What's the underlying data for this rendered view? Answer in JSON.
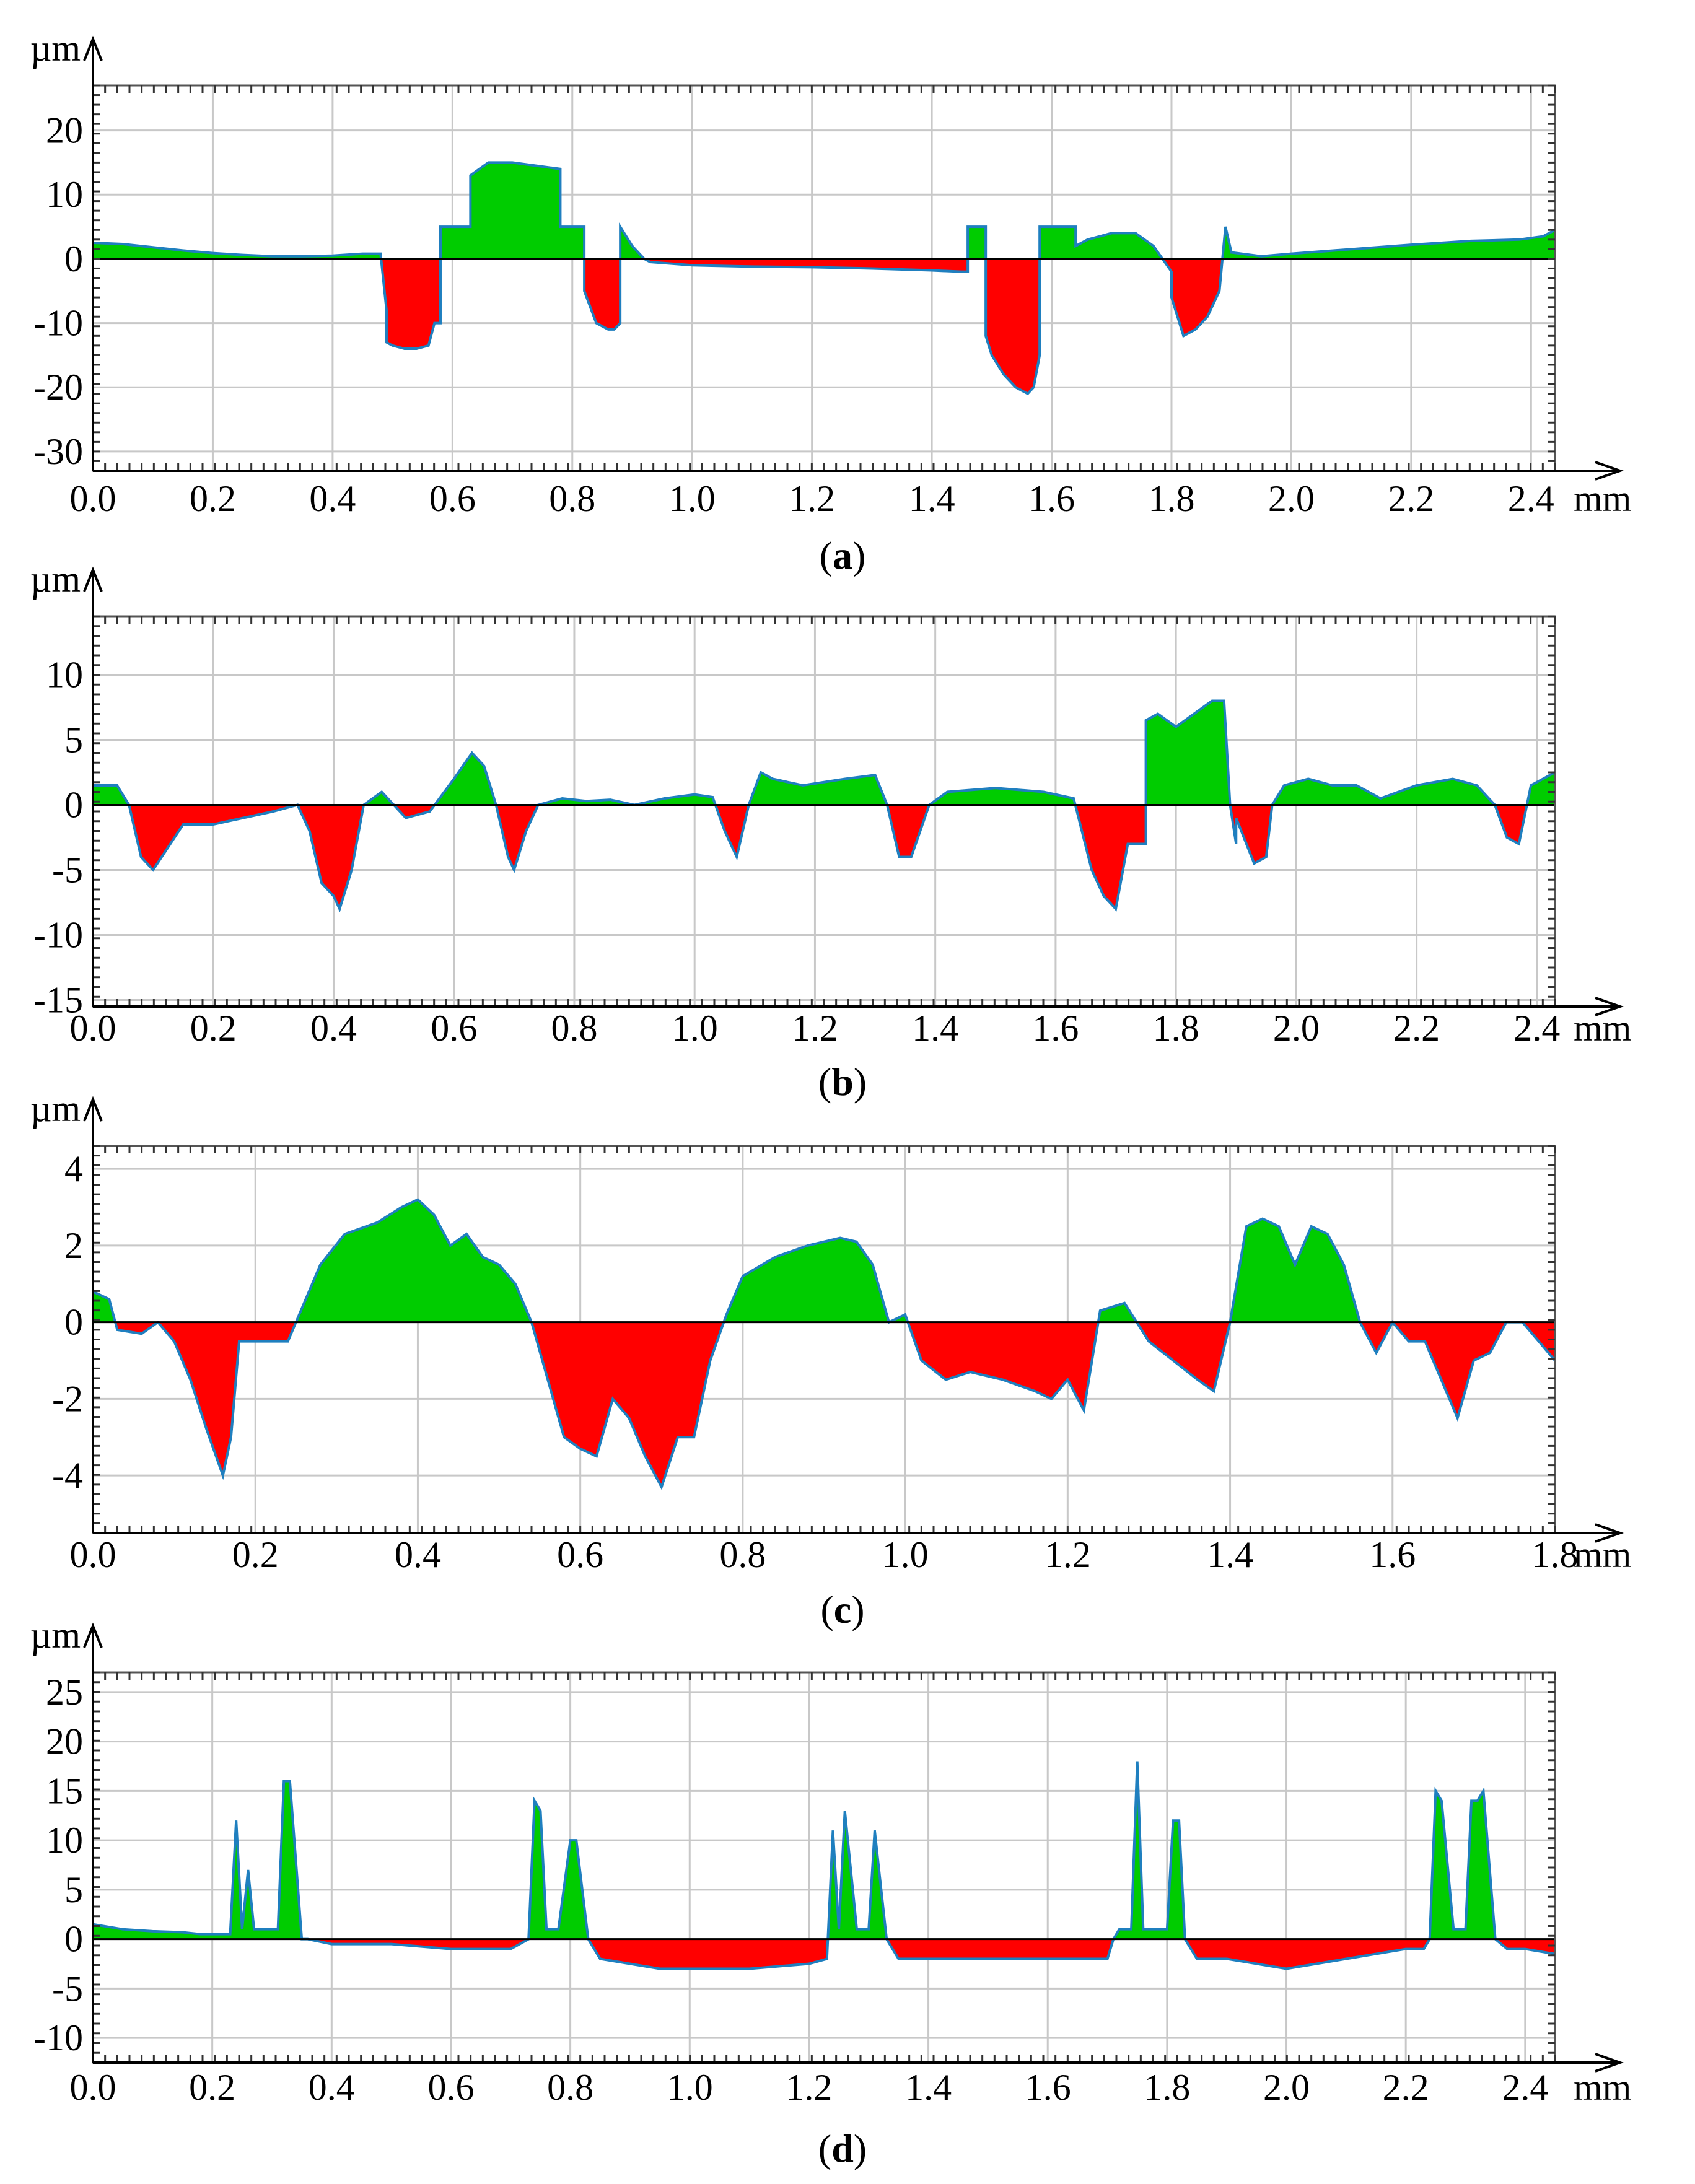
{
  "colors": {
    "positive_fill": "#00cc00",
    "negative_fill": "#ff0000",
    "profile_line": "#1f7fbf",
    "grid": "#c8c8c8",
    "axis": "#000000"
  },
  "chart_data": [
    {
      "type": "area",
      "panel": "(a)",
      "panel_letter": "a",
      "y_unit": "µm",
      "x_unit": "mm",
      "xlim": [
        0,
        2.44
      ],
      "ylim": [
        -33,
        27
      ],
      "x_ticks": [
        "0.0",
        "0.2",
        "0.4",
        "0.6",
        "0.8",
        "1.0",
        "1.2",
        "1.4",
        "1.6",
        "1.8",
        "2.0",
        "2.2",
        "2.4"
      ],
      "y_ticks": [
        "20",
        "10",
        "0",
        "-10",
        "-20",
        "-30"
      ],
      "grid": true,
      "series": [
        {
          "x": [
            0.0,
            0.05,
            0.1,
            0.15,
            0.2,
            0.25,
            0.3,
            0.35,
            0.4,
            0.45,
            0.48,
            0.49,
            0.49,
            0.5,
            0.52,
            0.54,
            0.56,
            0.57,
            0.58,
            0.58,
            0.63,
            0.63,
            0.66,
            0.7,
            0.74,
            0.78,
            0.78,
            0.82,
            0.82,
            0.84,
            0.86,
            0.87,
            0.88,
            0.88,
            0.9,
            0.92,
            0.93,
            1.0,
            1.1,
            1.2,
            1.3,
            1.4,
            1.45,
            1.46,
            1.46,
            1.49,
            1.49,
            1.5,
            1.52,
            1.54,
            1.56,
            1.57,
            1.58,
            1.58,
            1.64,
            1.64,
            1.66,
            1.7,
            1.74,
            1.77,
            1.8,
            1.8,
            1.82,
            1.84,
            1.86,
            1.88,
            1.89,
            1.9,
            1.95,
            2.0,
            2.1,
            2.2,
            2.3,
            2.38,
            2.42,
            2.44
          ],
          "y": [
            2.5,
            2.3,
            1.8,
            1.3,
            0.9,
            0.6,
            0.4,
            0.4,
            0.5,
            0.8,
            0.8,
            -8,
            -13,
            -13.5,
            -14,
            -14,
            -13.5,
            -10,
            -10,
            5,
            5,
            13,
            15,
            15,
            14.5,
            14,
            5,
            5,
            -5,
            -10,
            -11,
            -11,
            -10,
            5,
            2,
            0,
            -0.5,
            -1,
            -1.2,
            -1.3,
            -1.5,
            -1.8,
            -2,
            -2,
            5,
            5,
            -12,
            -15,
            -18,
            -20,
            -21,
            -20,
            -15,
            5,
            5,
            2,
            3,
            4,
            4,
            2,
            -2,
            -6,
            -12,
            -11,
            -9,
            -5,
            5,
            1,
            0.4,
            0.8,
            1.5,
            2.2,
            2.8,
            3,
            3.5,
            4.5
          ]
        }
      ]
    },
    {
      "type": "area",
      "panel": "(b)",
      "panel_letter": "b",
      "y_unit": "µm",
      "x_unit": "mm",
      "xlim": [
        0,
        2.43
      ],
      "ylim": [
        -15.5,
        14.5
      ],
      "x_ticks": [
        "0.0",
        "0.2",
        "0.4",
        "0.6",
        "0.8",
        "1.0",
        "1.2",
        "1.4",
        "1.6",
        "1.8",
        "2.0",
        "2.2",
        "2.4"
      ],
      "y_ticks": [
        "10",
        "5",
        "0",
        "-5",
        "-10",
        "-15"
      ],
      "grid": true,
      "series": [
        {
          "x": [
            0.0,
            0.04,
            0.06,
            0.08,
            0.1,
            0.15,
            0.2,
            0.25,
            0.3,
            0.34,
            0.36,
            0.38,
            0.4,
            0.41,
            0.43,
            0.45,
            0.48,
            0.52,
            0.56,
            0.6,
            0.63,
            0.65,
            0.67,
            0.69,
            0.7,
            0.72,
            0.74,
            0.78,
            0.82,
            0.86,
            0.9,
            0.95,
            1.0,
            1.03,
            1.05,
            1.07,
            1.09,
            1.11,
            1.13,
            1.18,
            1.25,
            1.3,
            1.32,
            1.34,
            1.36,
            1.39,
            1.42,
            1.5,
            1.58,
            1.63,
            1.66,
            1.68,
            1.7,
            1.72,
            1.75,
            1.75,
            1.77,
            1.8,
            1.83,
            1.86,
            1.88,
            1.89,
            1.9,
            1.9,
            1.93,
            1.95,
            1.96,
            1.98,
            2.02,
            2.06,
            2.1,
            2.14,
            2.2,
            2.26,
            2.3,
            2.33,
            2.35,
            2.37,
            2.39,
            2.43
          ],
          "y": [
            1.5,
            1.5,
            0,
            -4,
            -5,
            -1.5,
            -1.5,
            -1,
            -0.5,
            0,
            -2,
            -6,
            -7,
            -8,
            -5,
            0,
            1,
            -1,
            -0.5,
            2,
            4,
            3,
            0,
            -4,
            -5,
            -2,
            0,
            0.5,
            0.3,
            0.4,
            0,
            0.5,
            0.8,
            0.6,
            -2,
            -4,
            0,
            2.5,
            2,
            1.5,
            2,
            2.3,
            0,
            -4,
            -4,
            0,
            1,
            1.3,
            1,
            0.5,
            -5,
            -7,
            -8,
            -3,
            -3,
            6.5,
            7,
            6,
            7,
            8,
            8,
            0,
            -3,
            -1,
            -4.5,
            -4,
            0,
            1.5,
            2,
            1.5,
            1.5,
            0.5,
            1.5,
            2,
            1.5,
            0,
            -2.5,
            -3,
            1.5,
            2.5
          ]
        }
      ]
    },
    {
      "type": "area",
      "panel": "(c)",
      "panel_letter": "c",
      "y_unit": "µm",
      "x_unit": "mm",
      "xlim": [
        0,
        1.8
      ],
      "ylim": [
        -5.5,
        4.6
      ],
      "x_ticks": [
        "0.0",
        "0.2",
        "0.4",
        "0.6",
        "0.8",
        "1.0",
        "1.2",
        "1.4",
        "1.6",
        "1.8"
      ],
      "y_ticks": [
        "4",
        "2",
        "0",
        "-2",
        "-4"
      ],
      "grid": true,
      "series": [
        {
          "x": [
            0.0,
            0.02,
            0.03,
            0.06,
            0.08,
            0.1,
            0.12,
            0.14,
            0.16,
            0.17,
            0.18,
            0.19,
            0.21,
            0.24,
            0.25,
            0.28,
            0.31,
            0.35,
            0.38,
            0.4,
            0.42,
            0.44,
            0.46,
            0.48,
            0.5,
            0.52,
            0.54,
            0.56,
            0.58,
            0.6,
            0.62,
            0.64,
            0.66,
            0.68,
            0.7,
            0.72,
            0.74,
            0.76,
            0.78,
            0.8,
            0.84,
            0.88,
            0.92,
            0.94,
            0.96,
            0.98,
            1.0,
            1.02,
            1.05,
            1.08,
            1.12,
            1.16,
            1.18,
            1.2,
            1.22,
            1.24,
            1.27,
            1.3,
            1.33,
            1.36,
            1.38,
            1.4,
            1.42,
            1.44,
            1.46,
            1.48,
            1.5,
            1.52,
            1.54,
            1.56,
            1.58,
            1.6,
            1.62,
            1.64,
            1.66,
            1.68,
            1.7,
            1.72,
            1.74,
            1.76,
            1.78,
            1.8
          ],
          "y": [
            0.8,
            0.6,
            -0.2,
            -0.3,
            0,
            -0.5,
            -1.5,
            -2.8,
            -4,
            -3,
            -0.5,
            -0.5,
            -0.5,
            -0.5,
            0,
            1.5,
            2.3,
            2.6,
            3,
            3.2,
            2.8,
            2,
            2.3,
            1.7,
            1.5,
            1,
            0,
            -1.5,
            -3,
            -3.3,
            -3.5,
            -2,
            -2.5,
            -3.5,
            -4.3,
            -3,
            -3,
            -1,
            0.2,
            1.2,
            1.7,
            2,
            2.2,
            2.1,
            1.5,
            0,
            0.2,
            -1,
            -1.5,
            -1.3,
            -1.5,
            -1.8,
            -2,
            -1.5,
            -2.3,
            0.3,
            0.5,
            -0.5,
            -1,
            -1.5,
            -1.8,
            0,
            2.5,
            2.7,
            2.5,
            1.5,
            2.5,
            2.3,
            1.5,
            0,
            -0.8,
            0,
            -0.5,
            -0.5,
            -1.5,
            -2.5,
            -1,
            -0.8,
            0,
            0,
            -0.5,
            -1
          ]
        }
      ]
    },
    {
      "type": "area",
      "panel": "(d)",
      "panel_letter": "d",
      "y_unit": "µm",
      "x_unit": "mm",
      "xlim": [
        0,
        2.45
      ],
      "ylim": [
        -12.5,
        27
      ],
      "x_ticks": [
        "0.0",
        "0.2",
        "0.4",
        "0.6",
        "0.8",
        "1.0",
        "1.2",
        "1.4",
        "1.6",
        "1.8",
        "2.0",
        "2.2",
        "2.4"
      ],
      "y_ticks": [
        "25",
        "20",
        "15",
        "10",
        "5",
        "0",
        "-5",
        "-10"
      ],
      "grid": true,
      "series": [
        {
          "x": [
            0.0,
            0.05,
            0.1,
            0.15,
            0.18,
            0.23,
            0.24,
            0.25,
            0.26,
            0.27,
            0.28,
            0.31,
            0.32,
            0.33,
            0.35,
            0.36,
            0.4,
            0.5,
            0.6,
            0.7,
            0.73,
            0.74,
            0.75,
            0.76,
            0.78,
            0.8,
            0.81,
            0.83,
            0.85,
            0.9,
            0.95,
            1.0,
            1.1,
            1.2,
            1.23,
            1.24,
            1.25,
            1.26,
            1.28,
            1.3,
            1.31,
            1.33,
            1.35,
            1.4,
            1.5,
            1.6,
            1.7,
            1.71,
            1.72,
            1.74,
            1.75,
            1.76,
            1.78,
            1.8,
            1.81,
            1.82,
            1.83,
            1.85,
            1.9,
            2.0,
            2.1,
            2.2,
            2.23,
            2.24,
            2.25,
            2.26,
            2.28,
            2.3,
            2.31,
            2.32,
            2.33,
            2.35,
            2.37,
            2.4,
            2.45
          ],
          "y": [
            1.5,
            1,
            0.8,
            0.7,
            0.5,
            0.5,
            12,
            1,
            7,
            1,
            1,
            1,
            16,
            16,
            0,
            0,
            -0.5,
            -0.5,
            -1,
            -1,
            0,
            14,
            13,
            1,
            1,
            10,
            10,
            0,
            -2,
            -2.5,
            -3,
            -3,
            -3,
            -2.5,
            -2,
            11,
            1,
            13,
            1,
            1,
            11,
            0,
            -2,
            -2,
            -2,
            -2,
            -2,
            0,
            1,
            1,
            18,
            1,
            1,
            1,
            12,
            12,
            0,
            -2,
            -2,
            -3,
            -2,
            -1,
            -1,
            0,
            15,
            14,
            1,
            1,
            14,
            14,
            15,
            0,
            -1,
            -1,
            -1.5
          ]
        }
      ]
    }
  ]
}
